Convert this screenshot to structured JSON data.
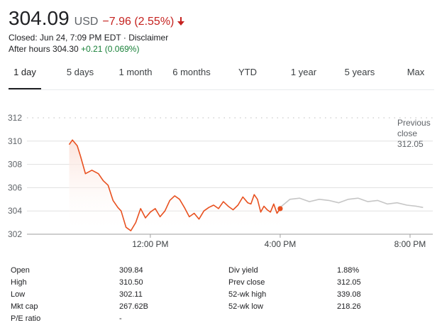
{
  "header": {
    "price": "304.09",
    "currency": "USD",
    "change": "−7.96 (2.55%)",
    "closed_text": "Closed: Jun 24, 7:09 PM EDT",
    "separator": " · ",
    "disclaimer": "Disclaimer",
    "after_hours_label": "After hours 304.30",
    "after_hours_change": "+0.21 (0.069%)"
  },
  "tabs": [
    {
      "label": "1 day",
      "active": true
    },
    {
      "label": "5 days",
      "active": false
    },
    {
      "label": "1 month",
      "active": false
    },
    {
      "label": "6 months",
      "active": false
    },
    {
      "label": "YTD",
      "active": false
    },
    {
      "label": "1 year",
      "active": false
    },
    {
      "label": "5 years",
      "active": false
    },
    {
      "label": "Max",
      "active": false
    }
  ],
  "chart_data": {
    "type": "line",
    "y_ticks": [
      "312",
      "310",
      "308",
      "306",
      "304",
      "302"
    ],
    "ylim": [
      302,
      312
    ],
    "x_ticks": [
      "12:00 PM",
      "4:00 PM",
      "8:00 PM"
    ],
    "x_tick_hours": [
      12,
      16,
      20
    ],
    "x_range_hours": [
      8.2,
      20.7
    ],
    "previous_close": {
      "line1": "Previous",
      "line2": "close",
      "value": "312.05",
      "numeric": 312.05
    },
    "colors": {
      "regular": "#e8501f",
      "after_hours": "#c6c6c6",
      "fill": "#fbe2da",
      "grid": "#e0e0e0"
    },
    "series": [
      {
        "x": [
          9.5,
          9.6,
          9.75,
          9.85,
          10.0,
          10.2,
          10.4,
          10.55,
          10.7,
          10.85,
          11.0,
          11.1,
          11.25,
          11.4,
          11.55,
          11.7,
          11.85,
          12.0,
          12.15,
          12.3,
          12.45,
          12.6,
          12.75,
          12.9,
          13.05,
          13.2,
          13.35,
          13.5,
          13.65,
          13.8,
          13.95,
          14.1,
          14.25,
          14.4,
          14.55,
          14.7,
          14.85,
          15.0,
          15.1,
          15.2,
          15.3,
          15.4,
          15.5,
          15.6,
          15.7,
          15.8,
          15.9,
          16.0
        ],
        "values": [
          309.7,
          310.1,
          309.6,
          308.7,
          307.2,
          307.5,
          307.2,
          306.6,
          306.2,
          304.9,
          304.3,
          304.0,
          302.6,
          302.3,
          303.0,
          304.2,
          303.4,
          303.9,
          304.2,
          303.5,
          304.0,
          304.9,
          305.3,
          305.0,
          304.3,
          303.5,
          303.8,
          303.3,
          304.0,
          304.3,
          304.5,
          304.2,
          304.8,
          304.4,
          304.1,
          304.5,
          305.2,
          304.7,
          304.6,
          305.4,
          305.0,
          303.9,
          304.4,
          304.1,
          303.9,
          304.6,
          303.8,
          304.2
        ]
      },
      {
        "x": [
          16.0,
          16.3,
          16.6,
          16.9,
          17.2,
          17.5,
          17.8,
          18.1,
          18.4,
          18.7,
          19.0,
          19.3,
          19.6,
          19.9,
          20.2,
          20.4
        ],
        "values": [
          304.3,
          305.0,
          305.1,
          304.8,
          305.0,
          304.9,
          304.7,
          305.0,
          305.1,
          304.8,
          304.9,
          304.6,
          304.7,
          304.5,
          304.4,
          304.3
        ]
      }
    ]
  },
  "stats": [
    {
      "label": "Open",
      "value": "309.84"
    },
    {
      "label": "High",
      "value": "310.50"
    },
    {
      "label": "Low",
      "value": "302.11"
    },
    {
      "label": "Mkt cap",
      "value": "267.62B"
    },
    {
      "label": "P/E ratio",
      "value": "-"
    },
    {
      "label": "Div yield",
      "value": "1.88%"
    },
    {
      "label": "Prev close",
      "value": "312.05"
    },
    {
      "label": "52-wk high",
      "value": "339.08"
    },
    {
      "label": "52-wk low",
      "value": "218.26"
    }
  ]
}
